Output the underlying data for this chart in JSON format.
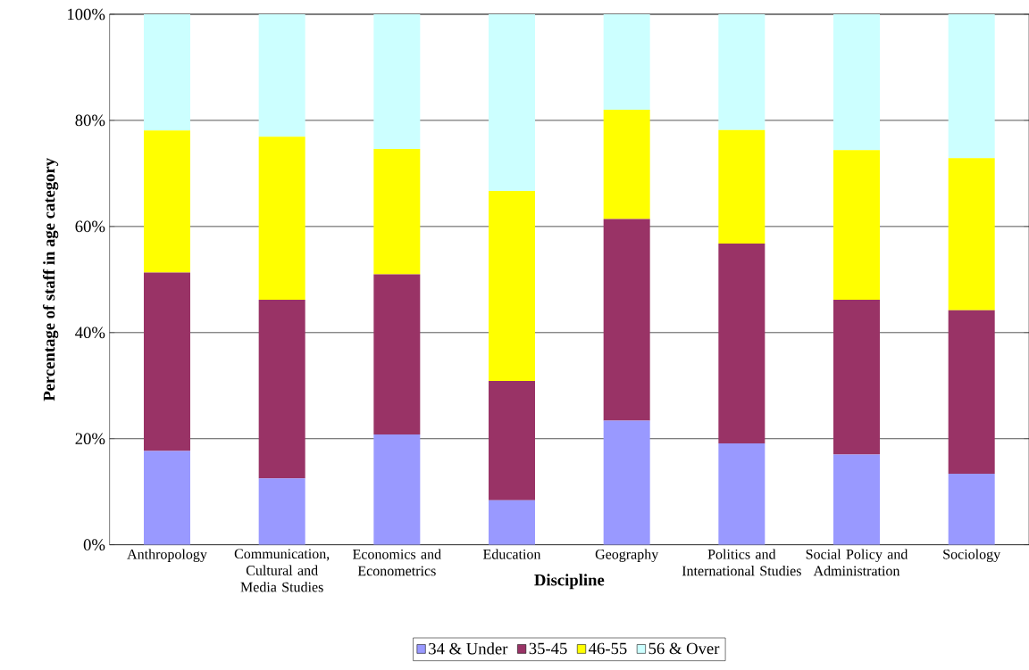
{
  "chart_data": {
    "type": "bar",
    "stacked": true,
    "xlabel": "Discipline",
    "ylabel": "Percentage of staff in age category",
    "categories": [
      "Anthropology",
      "Communication, Cultural and Media Studies",
      "Economics and Econometrics",
      "Education",
      "Geography",
      "Politics and International Studies",
      "Social Policy and Administration",
      "Sociology"
    ],
    "series": [
      {
        "name": "34 & Under",
        "color": "#9999ff",
        "values": [
          17.7,
          12.5,
          20.8,
          8.4,
          23.4,
          19.1,
          17.0,
          13.4
        ]
      },
      {
        "name": "35-45",
        "color": "#993366",
        "values": [
          33.6,
          33.7,
          30.2,
          22.5,
          38.0,
          37.7,
          29.2,
          30.8
        ]
      },
      {
        "name": "46-55",
        "color": "#ffff00",
        "values": [
          26.8,
          30.7,
          23.6,
          35.8,
          20.6,
          21.4,
          28.2,
          28.7
        ]
      },
      {
        "name": "56 & Over",
        "color": "#ccffff",
        "values": [
          21.9,
          23.1,
          25.4,
          33.3,
          18.0,
          21.8,
          25.6,
          27.1
        ]
      }
    ],
    "ylim": [
      0,
      100
    ],
    "yticks": [
      {
        "value": 0,
        "label": "0%"
      },
      {
        "value": 20,
        "label": "20%"
      },
      {
        "value": 40,
        "label": "40%"
      },
      {
        "value": 60,
        "label": "60%"
      },
      {
        "value": 80,
        "label": "80%"
      },
      {
        "value": 100,
        "label": "100%"
      }
    ],
    "grid": "y",
    "legend": "bottom"
  }
}
